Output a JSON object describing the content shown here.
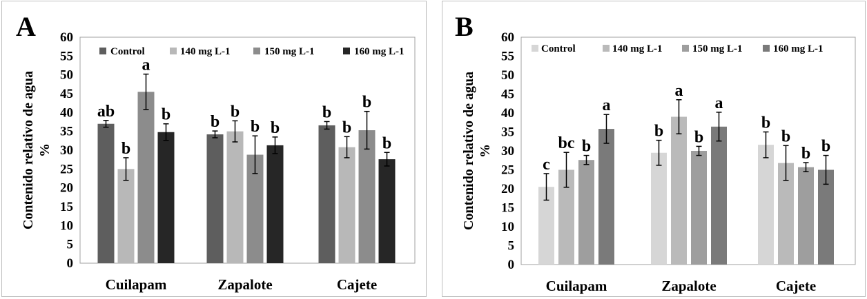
{
  "chart_data": [
    {
      "type": "bar",
      "panel_label": "A",
      "ylabel": "Contenido relativo de agua %",
      "ylim": [
        0,
        60
      ],
      "yticks": [
        "0",
        "5",
        "10",
        "15",
        "20",
        "25",
        "30",
        "35",
        "40",
        "45",
        "50",
        "55",
        "60"
      ],
      "categories": [
        "Cuilapam",
        "Zapalote",
        "Cajete"
      ],
      "legend_position": "top",
      "series": [
        {
          "name": "Control",
          "color": "#5e5e5e",
          "values": [
            37,
            34.2,
            36.6
          ],
          "errors": [
            0.9,
            0.9,
            1.0
          ],
          "letters": [
            "ab",
            "b",
            "b"
          ]
        },
        {
          "name": "140 mg L-1",
          "color": "#b8b8b8",
          "values": [
            25,
            35,
            30.8
          ],
          "errors": [
            3.0,
            2.8,
            2.8
          ],
          "letters": [
            "b",
            "b",
            "b"
          ]
        },
        {
          "name": "150 mg L-1",
          "color": "#8c8c8c",
          "values": [
            45.5,
            28.8,
            35.3
          ],
          "errors": [
            4.7,
            5.0,
            5.0
          ],
          "letters": [
            "a",
            "b",
            "b"
          ]
        },
        {
          "name": "160 mg L-1",
          "color": "#262626",
          "values": [
            34.8,
            31.3,
            27.6
          ],
          "errors": [
            2.2,
            2.2,
            1.8
          ],
          "letters": [
            "b",
            "b",
            "b"
          ]
        }
      ]
    },
    {
      "type": "bar",
      "panel_label": "B",
      "ylabel": "Contenido relativo de agua %",
      "ylim": [
        0,
        60
      ],
      "yticks": [
        "0",
        "5",
        "10",
        "15",
        "20",
        "25",
        "30",
        "35",
        "40",
        "45",
        "50",
        "55",
        "60"
      ],
      "categories": [
        "Cuilapam",
        "Zapalote",
        "Cajete"
      ],
      "legend_position": "top",
      "series": [
        {
          "name": "Control",
          "color": "#d6d6d6",
          "values": [
            20.5,
            29.5,
            31.6
          ],
          "errors": [
            3.5,
            3.3,
            3.4
          ],
          "letters": [
            "c",
            "b",
            "b"
          ]
        },
        {
          "name": "140 mg L-1",
          "color": "#bababa",
          "values": [
            25,
            39,
            26.8
          ],
          "errors": [
            4.6,
            4.5,
            4.6
          ],
          "letters": [
            "bc",
            "a",
            "b"
          ]
        },
        {
          "name": "150 mg L-1",
          "color": "#9e9e9e",
          "values": [
            27.6,
            30,
            25.7
          ],
          "errors": [
            1.2,
            1.2,
            1.2
          ],
          "letters": [
            "b",
            "b",
            "b"
          ]
        },
        {
          "name": "160 mg L-1",
          "color": "#7a7a7a",
          "values": [
            35.8,
            36.4,
            25
          ],
          "errors": [
            3.8,
            3.8,
            3.8
          ],
          "letters": [
            "a",
            "a",
            "b"
          ]
        }
      ]
    }
  ]
}
